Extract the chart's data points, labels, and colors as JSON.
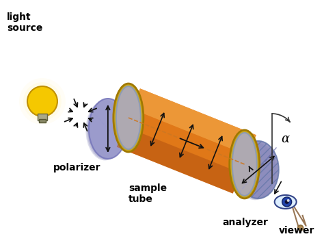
{
  "bg_color": "#ffffff",
  "labels": {
    "light_source": "light\nsource",
    "polarizer": "polarizer",
    "sample_tube": "sample\ntube",
    "analyzer": "analyzer",
    "viewer": "viewer",
    "alpha": "α"
  },
  "colors": {
    "bulb_body": "#f5c800",
    "bulb_base": "#888866",
    "polarizer_face": "#9999cc",
    "polarizer_edge": "#7777bb",
    "tube_body": "#e07818",
    "tube_highlight": "#f0a040",
    "tube_shadow": "#b05010",
    "tube_end_face": "#aaaacc",
    "tube_rim": "#c8a820",
    "analyzer_face": "#8888bb",
    "arrow_color": "#111111",
    "label_color": "#000000",
    "ray_dashed": "#cc7722"
  },
  "figsize": [
    4.74,
    3.55
  ],
  "dpi": 100
}
